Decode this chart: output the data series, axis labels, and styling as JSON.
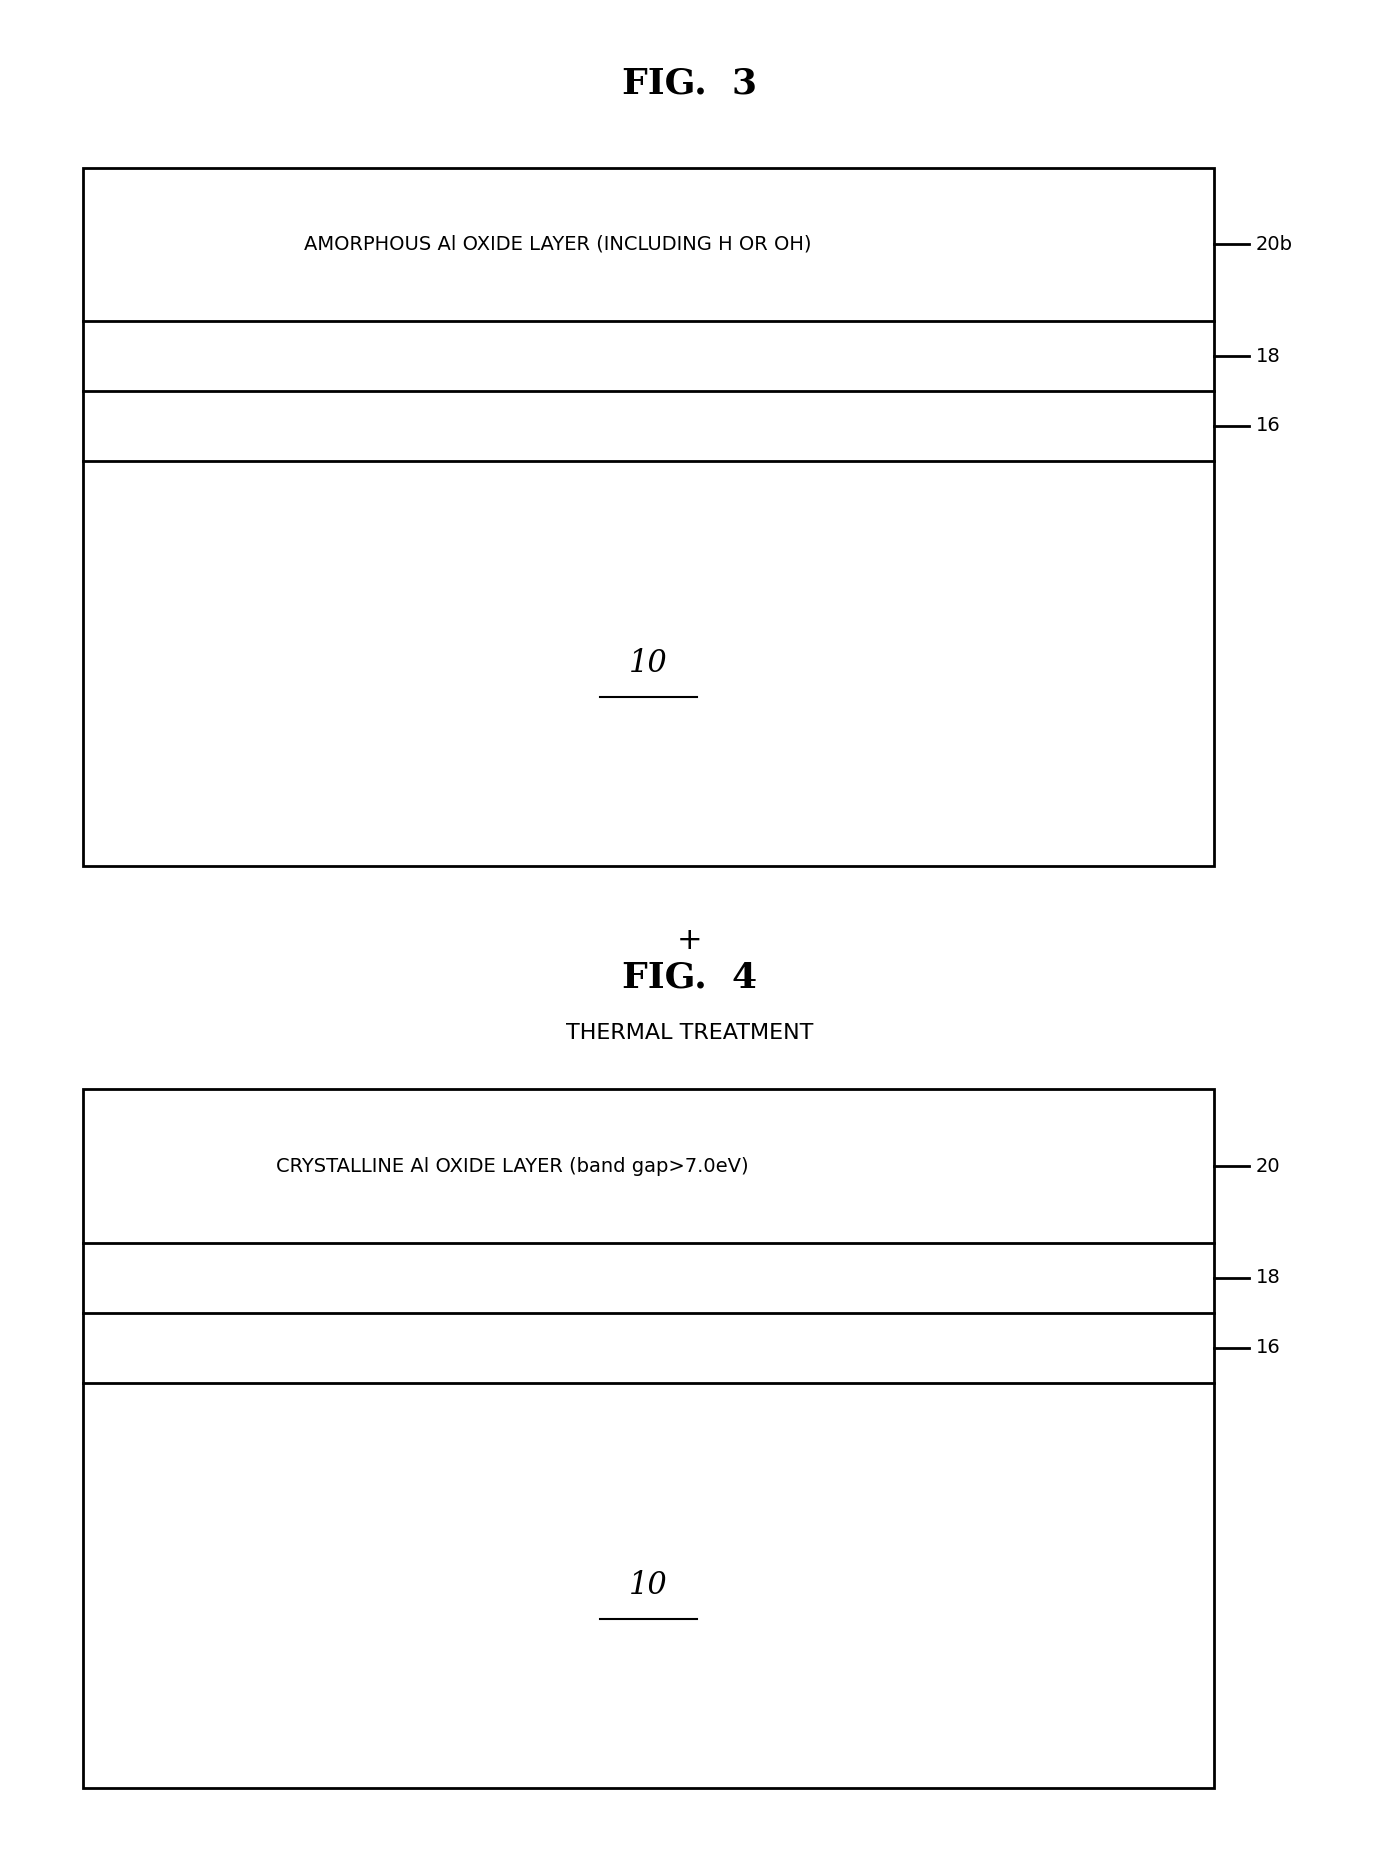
{
  "fig3_title": "FIG.  3",
  "fig4_title": "FIG.  4",
  "background_color": "#ffffff",
  "fig3": {
    "layer_20b_label": "AMORPHOUS Al OXIDE LAYER (INCLUDING H OR OH)",
    "label_20b": "20b",
    "label_18": "18",
    "label_16": "16",
    "label_10": "10",
    "plus_text": "+",
    "thermal_text": "THERMAL TREATMENT"
  },
  "fig4": {
    "layer_20_label": "CRYSTALLINE Al OXIDE LAYER (band gap>7.0eV)",
    "label_20": "20",
    "label_18": "18",
    "label_16": "16",
    "label_10": "10"
  },
  "line_color": "#000000",
  "text_color": "#000000",
  "title_fontsize": 26,
  "label_fontsize": 14,
  "ref_fontsize": 14,
  "annotation_fontsize": 16
}
